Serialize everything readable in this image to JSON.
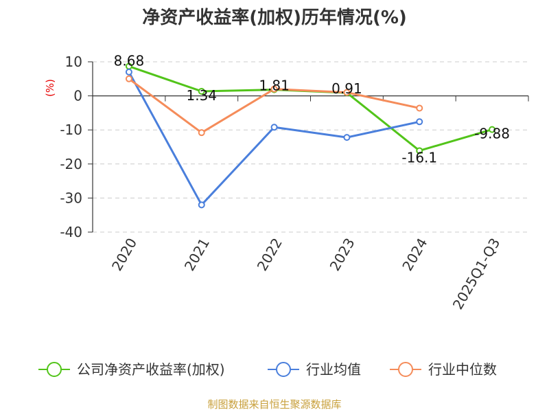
{
  "chart_data": {
    "type": "line",
    "title": "净资产收益率(加权)历年情况(%)",
    "ylabel": "(%)",
    "xlabel": "",
    "categories": [
      "2020",
      "2021",
      "2022",
      "2023",
      "2024",
      "2025Q1-Q3"
    ],
    "ylim": [
      -40,
      10
    ],
    "yticks": [
      10,
      0,
      -10,
      -20,
      -30,
      -40
    ],
    "grid": true,
    "legend_position": "bottom",
    "series": [
      {
        "name": "公司净资产收益率(加权)",
        "color": "#52c41a",
        "values": [
          8.68,
          1.34,
          1.81,
          0.91,
          -16.1,
          -9.88
        ],
        "labels": [
          "8.68",
          "1.34",
          "1.81",
          "0.91",
          "-16.1",
          "-9.88"
        ]
      },
      {
        "name": "行业均值",
        "color": "#4a7fdc",
        "values": [
          7.0,
          -32.0,
          -9.2,
          -12.2,
          -7.6,
          null
        ]
      },
      {
        "name": "行业中位数",
        "color": "#f58c5a",
        "values": [
          5.0,
          -10.8,
          2.0,
          1.0,
          -3.6,
          null
        ]
      }
    ],
    "source": "制图数据来自恒生聚源数据库"
  }
}
